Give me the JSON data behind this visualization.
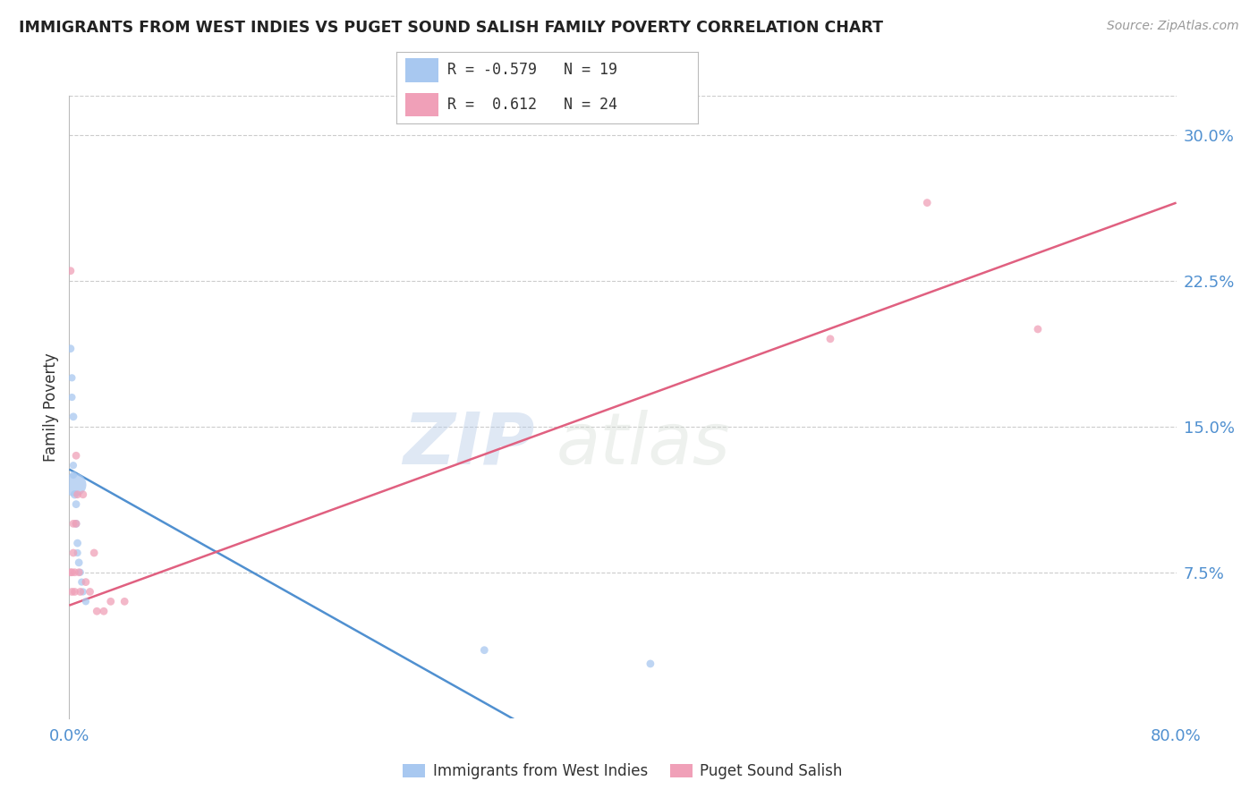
{
  "title": "IMMIGRANTS FROM WEST INDIES VS PUGET SOUND SALISH FAMILY POVERTY CORRELATION CHART",
  "source": "Source: ZipAtlas.com",
  "ylabel": "Family Poverty",
  "blue_label": "Immigrants from West Indies",
  "pink_label": "Puget Sound Salish",
  "blue_R": "-0.579",
  "blue_N": "19",
  "pink_R": "0.612",
  "pink_N": "24",
  "blue_color": "#A8C8F0",
  "pink_color": "#F0A0B8",
  "blue_line_color": "#5090D0",
  "pink_line_color": "#E06080",
  "watermark_text": "ZIP",
  "watermark_text2": "atlas",
  "xlim": [
    0.0,
    0.8
  ],
  "ylim": [
    0.0,
    0.32
  ],
  "yticks": [
    0.075,
    0.15,
    0.225,
    0.3
  ],
  "ytick_labels": [
    "7.5%",
    "15.0%",
    "22.5%",
    "30.0%"
  ],
  "xtick_positions": [
    0.0,
    0.1,
    0.2,
    0.3,
    0.4,
    0.5,
    0.6,
    0.7,
    0.8
  ],
  "xtick_labels": [
    "0.0%",
    "",
    "",
    "",
    "",
    "",
    "",
    "",
    "80.0%"
  ],
  "blue_line_x": [
    0.0,
    0.42
  ],
  "blue_line_y": [
    0.128,
    -0.04
  ],
  "pink_line_x": [
    0.0,
    0.8
  ],
  "pink_line_y": [
    0.058,
    0.265
  ],
  "blue_scatter_x": [
    0.001,
    0.002,
    0.002,
    0.003,
    0.003,
    0.003,
    0.004,
    0.004,
    0.005,
    0.005,
    0.006,
    0.006,
    0.007,
    0.008,
    0.009,
    0.01,
    0.012,
    0.3,
    0.42
  ],
  "blue_scatter_y": [
    0.19,
    0.175,
    0.165,
    0.155,
    0.13,
    0.125,
    0.12,
    0.115,
    0.11,
    0.1,
    0.09,
    0.085,
    0.08,
    0.075,
    0.07,
    0.065,
    0.06,
    0.035,
    0.028
  ],
  "blue_scatter_sizes": [
    40,
    35,
    35,
    40,
    35,
    35,
    350,
    45,
    40,
    40,
    40,
    35,
    40,
    35,
    35,
    35,
    35,
    40,
    40
  ],
  "pink_scatter_x": [
    0.001,
    0.001,
    0.002,
    0.002,
    0.003,
    0.003,
    0.004,
    0.004,
    0.005,
    0.005,
    0.006,
    0.007,
    0.008,
    0.01,
    0.012,
    0.015,
    0.018,
    0.02,
    0.025,
    0.03,
    0.04,
    0.55,
    0.62,
    0.7
  ],
  "pink_scatter_y": [
    0.23,
    0.075,
    0.075,
    0.065,
    0.1,
    0.085,
    0.075,
    0.065,
    0.135,
    0.1,
    0.115,
    0.075,
    0.065,
    0.115,
    0.07,
    0.065,
    0.085,
    0.055,
    0.055,
    0.06,
    0.06,
    0.195,
    0.265,
    0.2
  ],
  "pink_scatter_sizes": [
    40,
    40,
    40,
    40,
    40,
    40,
    40,
    40,
    40,
    40,
    40,
    40,
    40,
    40,
    40,
    40,
    40,
    40,
    40,
    40,
    40,
    40,
    40,
    40
  ]
}
